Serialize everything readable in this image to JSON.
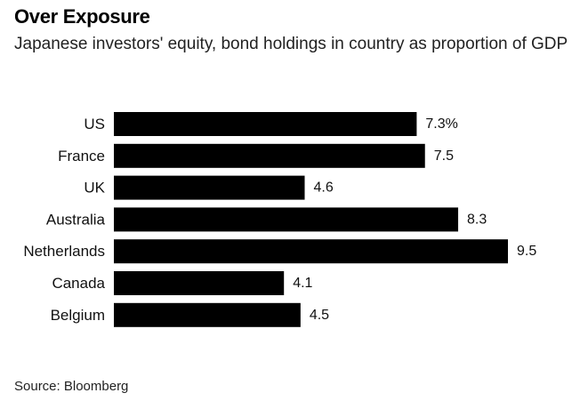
{
  "chart_data": {
    "type": "bar",
    "orientation": "horizontal",
    "title": "Over Exposure",
    "subtitle": "Japanese investors' equity, bond holdings in country as proportion of GDP",
    "source": "Source: Bloomberg",
    "categories": [
      "US",
      "France",
      "UK",
      "Australia",
      "Netherlands",
      "Canada",
      "Belgium"
    ],
    "values": [
      7.3,
      7.5,
      4.6,
      8.3,
      9.5,
      4.1,
      4.5
    ],
    "value_labels": [
      "7.3%",
      "7.5",
      "4.6",
      "8.3",
      "9.5",
      "4.1",
      "4.5"
    ],
    "bar_color": "#000000",
    "xlabel": "",
    "ylabel": "",
    "xlim": [
      0,
      9.5
    ],
    "grid": false,
    "legend": "none"
  }
}
